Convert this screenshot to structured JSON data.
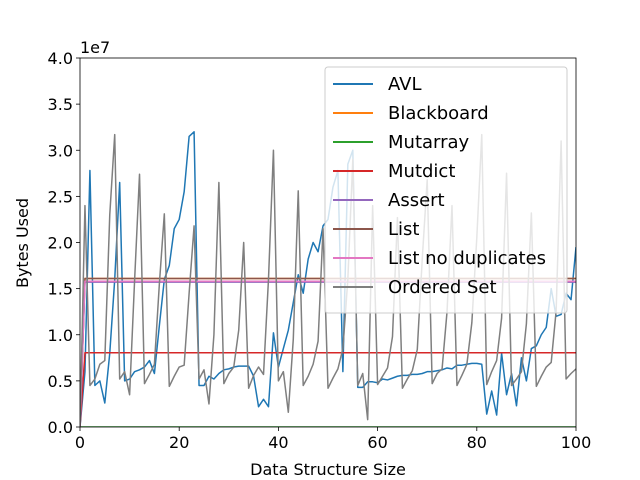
{
  "chart_data": {
    "type": "line",
    "title": "",
    "xlabel": "Data Structure Size",
    "ylabel": "Bytes Used",
    "y_offset_label": "1e7",
    "xlim": [
      0,
      100
    ],
    "ylim": [
      0,
      40000000
    ],
    "x_ticks": [
      0,
      20,
      40,
      60,
      80,
      100
    ],
    "x_tick_labels": [
      "0",
      "20",
      "40",
      "60",
      "80",
      "100"
    ],
    "y_ticks": [
      0,
      5000000,
      10000000,
      15000000,
      20000000,
      25000000,
      30000000,
      35000000,
      40000000
    ],
    "y_tick_labels": [
      "0.0",
      "0.5",
      "1.0",
      "1.5",
      "2.0",
      "2.5",
      "3.0",
      "3.5",
      "4.0"
    ],
    "grid": false,
    "legend_position": "top-right",
    "series": [
      {
        "name": "AVL",
        "color": "#1f77b4",
        "x": [
          0,
          1,
          2,
          3,
          4,
          5,
          6,
          7,
          8,
          9,
          10,
          11,
          12,
          13,
          14,
          15,
          16,
          17,
          18,
          19,
          20,
          21,
          22,
          23,
          24,
          25,
          26,
          27,
          28,
          29,
          30,
          31,
          32,
          33,
          34,
          35,
          36,
          37,
          38,
          39,
          40,
          41,
          42,
          43,
          44,
          45,
          46,
          47,
          48,
          49,
          50,
          51,
          52,
          53,
          54,
          55,
          56,
          57,
          58,
          59,
          60,
          61,
          62,
          63,
          64,
          65,
          66,
          67,
          68,
          69,
          70,
          71,
          72,
          73,
          74,
          75,
          76,
          77,
          78,
          79,
          80,
          81,
          82,
          83,
          84,
          85,
          86,
          87,
          88,
          89,
          90,
          91,
          92,
          93,
          94,
          95,
          96,
          97,
          98,
          99,
          100
        ],
        "values": [
          0,
          6000000,
          27800000,
          4500000,
          5000000,
          2600000,
          8000000,
          16000000,
          26500000,
          5000000,
          5200000,
          6000000,
          6200000,
          6500000,
          7200000,
          5800000,
          11000000,
          16000000,
          17500000,
          21500000,
          22500000,
          25500000,
          31500000,
          32000000,
          4500000,
          4500000,
          5500000,
          5200000,
          5800000,
          6200000,
          6300000,
          6500000,
          6600000,
          6600000,
          6600000,
          5500000,
          2200000,
          3000000,
          2200000,
          10200000,
          6500000,
          8500000,
          10500000,
          13500000,
          16500000,
          14500000,
          18200000,
          20000000,
          19000000,
          21800000,
          22500000,
          26000000,
          27800000,
          6000000,
          28500000,
          30000000,
          4300000,
          4300000,
          4900000,
          4900000,
          4800000,
          5200000,
          5100000,
          5300000,
          5500000,
          5600000,
          5600000,
          5700000,
          5700000,
          5800000,
          6000000,
          6000000,
          6100000,
          6200000,
          6400000,
          6300000,
          6700000,
          6700000,
          6800000,
          6900000,
          6900000,
          6800000,
          1400000,
          3900000,
          1300000,
          8000000,
          3500000,
          5800000,
          2300000,
          7500000,
          5000000,
          8500000,
          8800000,
          10000000,
          10800000,
          15000000,
          12000000,
          12200000,
          14500000,
          13800000,
          19500000
        ]
      },
      {
        "name": "Blackboard",
        "color": "#ff7f0e",
        "x": [
          0,
          1,
          100
        ],
        "values": [
          0,
          16100000,
          16100000
        ]
      },
      {
        "name": "Mutarray",
        "color": "#2ca02c",
        "x": [
          0,
          100
        ],
        "values": [
          0,
          0
        ]
      },
      {
        "name": "Mutdict",
        "color": "#d62728",
        "x": [
          0,
          1,
          100
        ],
        "values": [
          0,
          8050000,
          8050000
        ]
      },
      {
        "name": "Assert",
        "color": "#9467bd",
        "x": [
          0,
          1,
          100
        ],
        "values": [
          0,
          15700000,
          15700000
        ]
      },
      {
        "name": "List",
        "color": "#8c564b",
        "x": [
          0,
          1,
          100
        ],
        "values": [
          0,
          16100000,
          16100000
        ]
      },
      {
        "name": "List no duplicates",
        "color": "#e377c2",
        "x": [
          0,
          1,
          100
        ],
        "values": [
          0,
          15800000,
          15800000
        ]
      },
      {
        "name": "Ordered Set",
        "color": "#7f7f7f",
        "x": [
          0,
          1,
          2,
          3,
          4,
          5,
          6,
          7,
          8,
          9,
          10,
          11,
          12,
          13,
          14,
          15,
          16,
          17,
          18,
          19,
          20,
          21,
          22,
          23,
          24,
          25,
          26,
          27,
          28,
          29,
          30,
          31,
          32,
          33,
          34,
          35,
          36,
          37,
          38,
          39,
          40,
          41,
          42,
          43,
          44,
          45,
          46,
          47,
          48,
          49,
          50,
          51,
          52,
          53,
          54,
          55,
          56,
          57,
          58,
          59,
          60,
          61,
          62,
          63,
          64,
          65,
          66,
          67,
          68,
          69,
          70,
          71,
          72,
          73,
          74,
          75,
          76,
          77,
          78,
          79,
          80,
          81,
          82,
          83,
          84,
          85,
          86,
          87,
          88,
          89,
          90,
          91,
          92,
          93,
          94,
          95,
          96,
          97,
          98,
          99,
          100
        ],
        "values": [
          0,
          24000000,
          4500000,
          5200000,
          6800000,
          7200000,
          23000000,
          31700000,
          5200000,
          6000000,
          3500000,
          15800000,
          27400000,
          4700000,
          5700000,
          6800000,
          15500000,
          23100000,
          4400000,
          5500000,
          6500000,
          6700000,
          14500000,
          21800000,
          5200000,
          6200000,
          2500000,
          10000000,
          26500000,
          4700000,
          5800000,
          6500000,
          10500000,
          20000000,
          4200000,
          5600000,
          6500000,
          5700000,
          16000000,
          30000000,
          5000000,
          6000000,
          1600000,
          9500000,
          25600000,
          4500000,
          5500000,
          6800000,
          9300000,
          21500000,
          4200000,
          5300000,
          6300000,
          8500000,
          16000000,
          29000000,
          4500000,
          5800000,
          800000,
          24000000,
          4600000,
          5500000,
          6400000,
          9800000,
          22700000,
          4200000,
          5200000,
          6100000,
          8400000,
          18200000,
          26800000,
          4700000,
          5800000,
          6300000,
          12500000,
          24000000,
          4500000,
          5600000,
          6800000,
          11300000,
          20500000,
          31700000,
          4600000,
          6000000,
          7200000,
          11800000,
          27500000,
          4500000,
          5200000,
          6000000,
          11200000,
          23200000,
          4400000,
          5500000,
          6500000,
          7000000,
          12600000,
          31000000,
          5200000,
          5800000,
          6300000
        ]
      }
    ]
  }
}
